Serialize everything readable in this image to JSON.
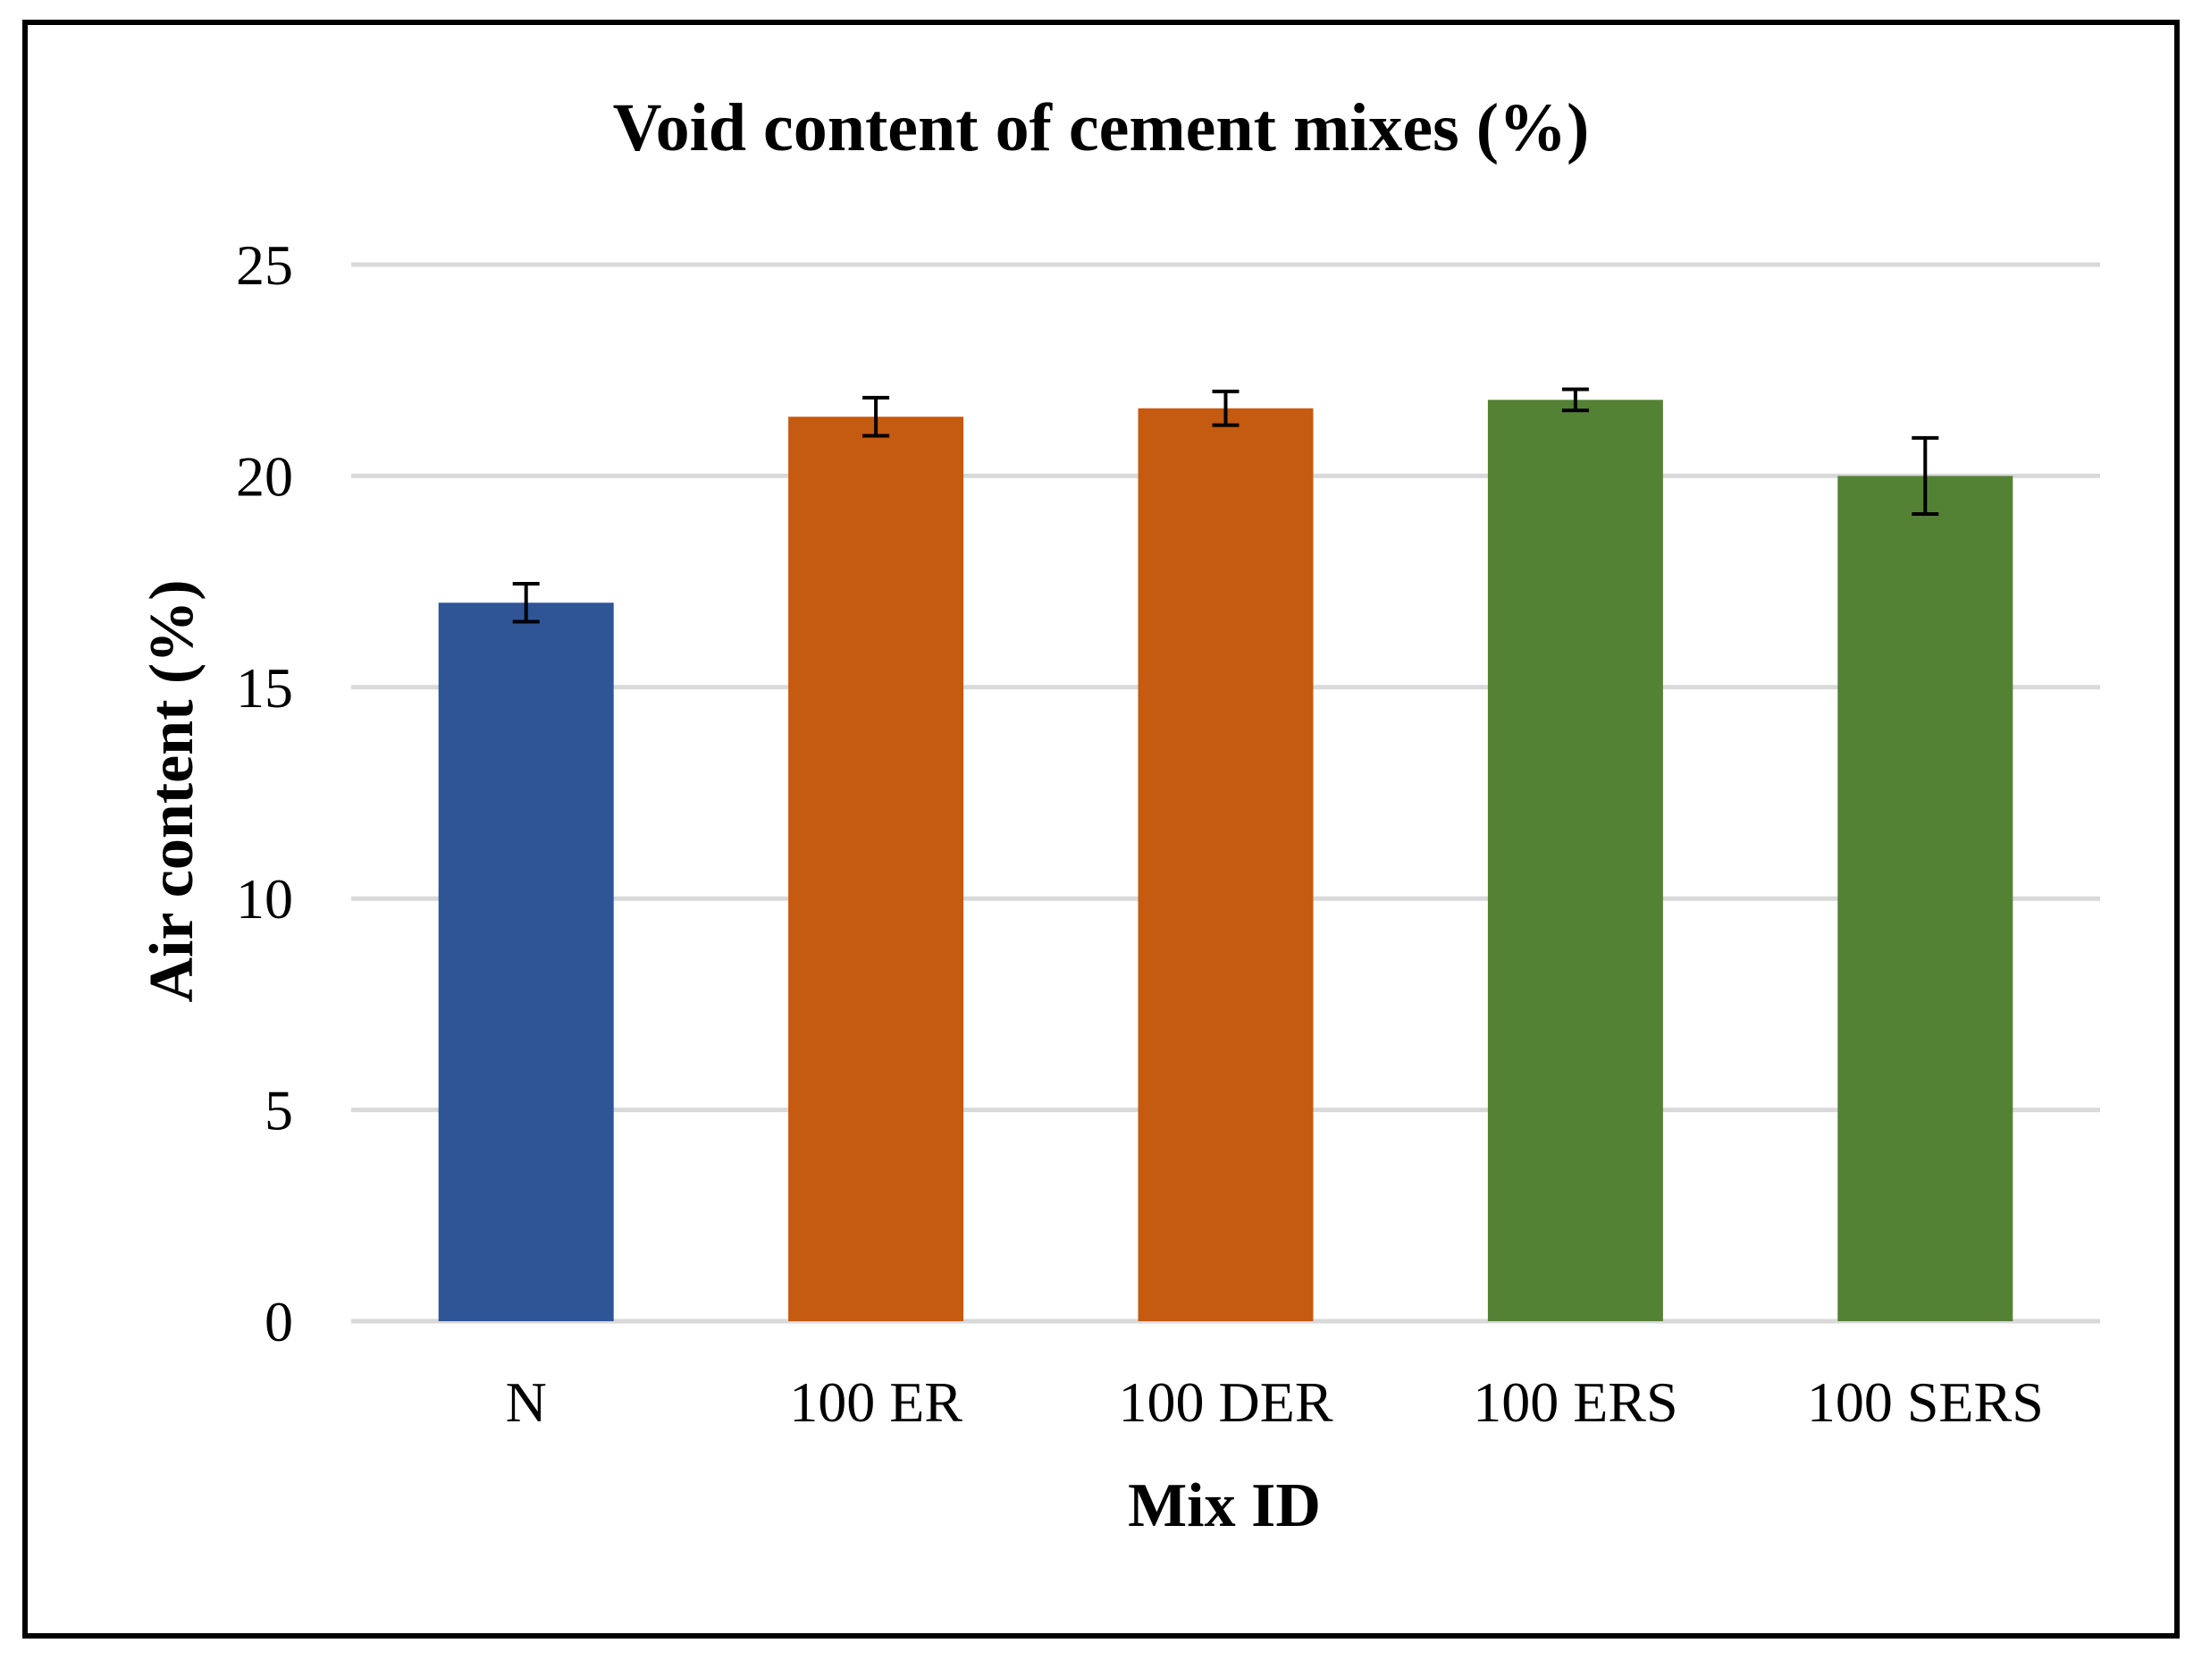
{
  "chart_data": {
    "type": "bar",
    "title": "Void content of cement mixes (%)",
    "xlabel": "Mix ID",
    "ylabel": "Air content (%)",
    "categories": [
      "N",
      "100 ER",
      "100 DER",
      "100 ERS",
      "100 SERS"
    ],
    "values": [
      17.0,
      21.4,
      21.6,
      21.8,
      20.0
    ],
    "error": [
      0.45,
      0.45,
      0.4,
      0.25,
      0.9
    ],
    "colors": [
      "#2f5597",
      "#c55a11",
      "#c55a11",
      "#548235",
      "#548235"
    ],
    "ylim": [
      0,
      25
    ],
    "yticks": [
      0,
      5,
      10,
      15,
      20,
      25
    ],
    "ytick_labels": [
      "0",
      "5",
      "10",
      "15",
      "20",
      "25"
    ],
    "grid": true,
    "legend": "none"
  }
}
